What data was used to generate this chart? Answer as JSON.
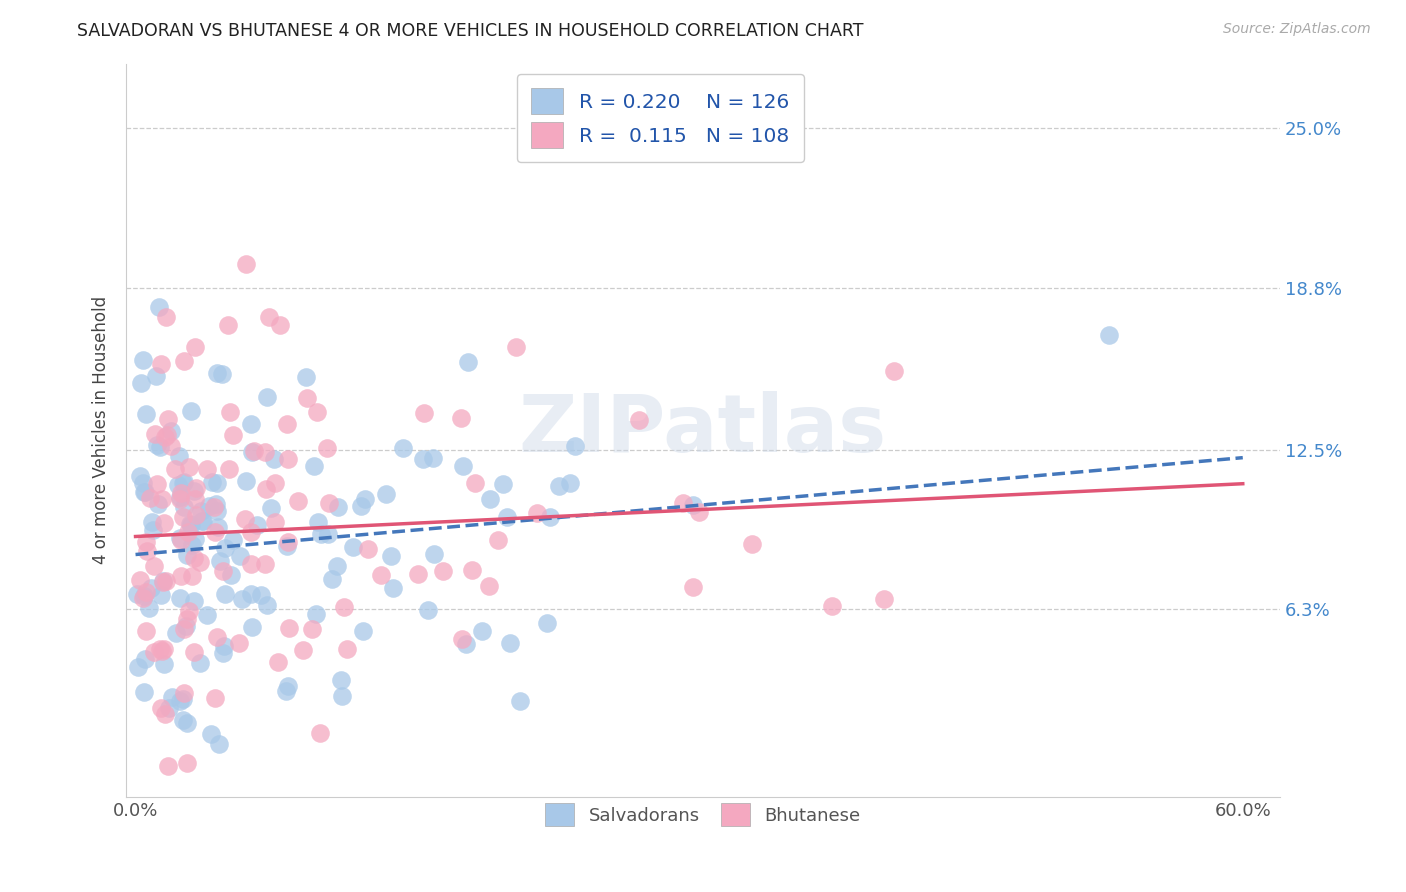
{
  "title": "SALVADORAN VS BHUTANESE 4 OR MORE VEHICLES IN HOUSEHOLD CORRELATION CHART",
  "source": "Source: ZipAtlas.com",
  "ylabel": "4 or more Vehicles in Household",
  "ytick_labels": [
    "6.3%",
    "12.5%",
    "18.8%",
    "25.0%"
  ],
  "ytick_values": [
    0.063,
    0.125,
    0.188,
    0.25
  ],
  "xlim": [
    0.0,
    0.6
  ],
  "ylim": [
    0.0,
    0.27
  ],
  "watermark": "ZIPatlas",
  "legend_r1": "R = 0.220",
  "legend_n1": "N = 126",
  "legend_r2": "R =  0.115",
  "legend_n2": "N = 108",
  "color_salvadoran": "#a8c8e8",
  "color_bhutanese": "#f4a8c0",
  "color_line_salvadoran": "#4477bb",
  "color_line_bhutanese": "#e05575",
  "color_right_axis": "#4488cc",
  "legend_text_color": "#2255aa"
}
